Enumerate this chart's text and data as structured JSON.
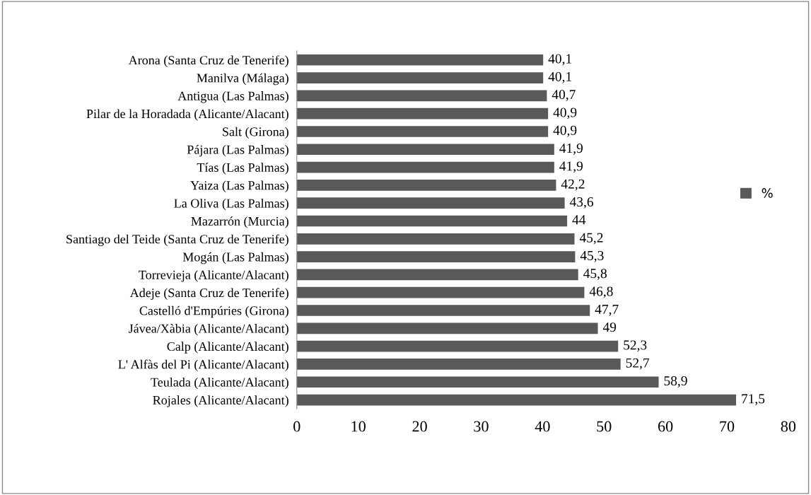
{
  "chart_data": {
    "type": "bar",
    "orientation": "horizontal",
    "categories": [
      "Arona (Santa Cruz de Tenerife)",
      "Manilva (Málaga)",
      "Antigua (Las Palmas)",
      "Pilar de la Horadada (Alicante/Alacant)",
      "Salt (Girona)",
      "Pájara (Las Palmas)",
      "Tías (Las Palmas)",
      "Yaiza (Las Palmas)",
      "La Oliva (Las Palmas)",
      "Mazarrón (Murcia)",
      "Santiago del Teide (Santa Cruz de Tenerife)",
      "Mogán (Las Palmas)",
      "Torrevieja (Alicante/Alacant)",
      "Adeje (Santa Cruz de Tenerife)",
      "Castelló d'Empúries (Girona)",
      "Jávea/Xàbia (Alicante/Alacant)",
      "Calp (Alicante/Alacant)",
      "L' Alfàs del Pi (Alicante/Alacant)",
      "Teulada (Alicante/Alacant)",
      "Rojales (Alicante/Alacant)"
    ],
    "series": [
      {
        "name": "%",
        "color": "#595959",
        "values": [
          40.1,
          40.1,
          40.7,
          40.9,
          40.9,
          41.9,
          41.9,
          42.2,
          43.6,
          44,
          45.2,
          45.3,
          45.8,
          46.8,
          47.7,
          49,
          52.3,
          52.7,
          58.9,
          71.5
        ],
        "value_labels": [
          "40,1",
          "40,1",
          "40,7",
          "40,9",
          "40,9",
          "41,9",
          "41,9",
          "42,2",
          "43,6",
          "44",
          "45,2",
          "45,3",
          "45,8",
          "46,8",
          "47,7",
          "49",
          "52,3",
          "52,7",
          "58,9",
          "71,5"
        ]
      }
    ],
    "xlim": [
      0,
      80
    ],
    "xticks": [
      0,
      10,
      20,
      30,
      40,
      50,
      60,
      70,
      80
    ],
    "grid": false,
    "legend": "right"
  }
}
